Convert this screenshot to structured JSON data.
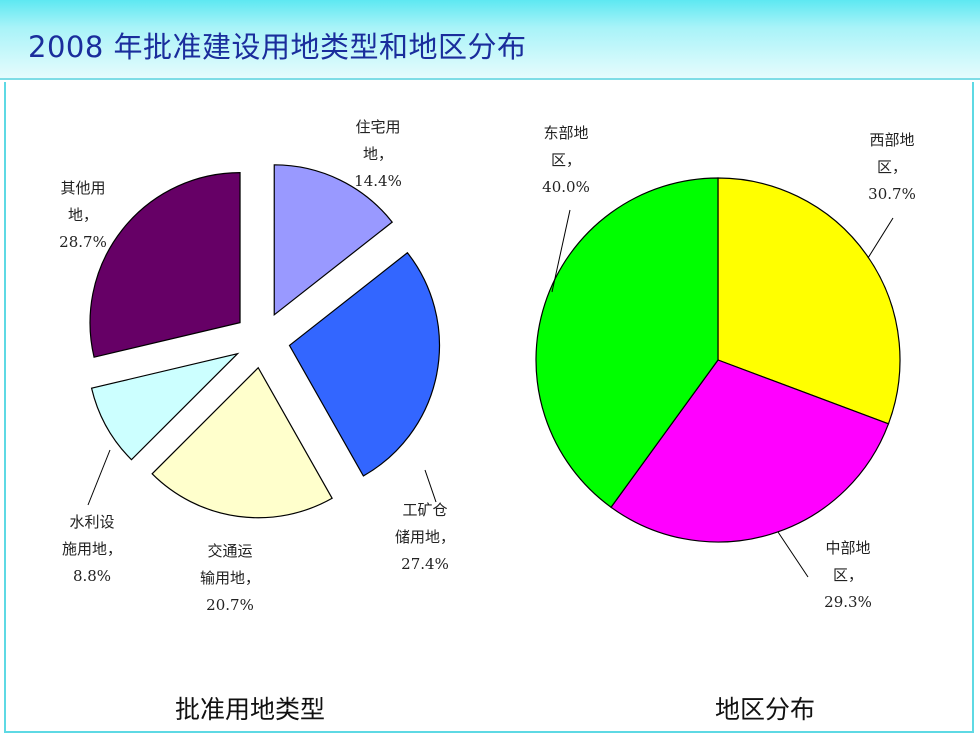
{
  "title": "2008 年批准建设用地类型和地区分布",
  "colors": {
    "title_text": "#1a2d9c",
    "title_bar": "#5ee8f2",
    "frame_border": "#5ed9e4"
  },
  "chart_data": [
    {
      "type": "pie",
      "title": "批准用地类型",
      "exploded": true,
      "slices": [
        {
          "name": "住宅用地",
          "value": 14.4,
          "color": "#9999ff",
          "label_lines": [
            "住宅用",
            "地，",
            "14.4%"
          ]
        },
        {
          "name": "工矿仓储用地",
          "value": 27.4,
          "color": "#3366ff",
          "label_lines": [
            "工矿仓",
            "储用地，",
            "27.4%"
          ]
        },
        {
          "name": "交通运输用地",
          "value": 20.7,
          "color": "#ffffcc",
          "label_lines": [
            "交通运",
            "输用地，",
            "20.7%"
          ]
        },
        {
          "name": "水利设施用地",
          "value": 8.8,
          "color": "#ccffff",
          "label_lines": [
            "水利设",
            "施用地，",
            "8.8%"
          ]
        },
        {
          "name": "其他用地",
          "value": 28.7,
          "color": "#660066",
          "label_lines": [
            "其他用",
            "地，",
            "28.7%"
          ]
        }
      ]
    },
    {
      "type": "pie",
      "title": "地区分布",
      "exploded": false,
      "slices": [
        {
          "name": "西部地区",
          "value": 30.7,
          "color": "#ffff00",
          "label_lines": [
            "西部地",
            "区，",
            "30.7%"
          ]
        },
        {
          "name": "中部地区",
          "value": 29.3,
          "color": "#ff00ff",
          "label_lines": [
            "中部地",
            "区，",
            "29.3%"
          ]
        },
        {
          "name": "东部地区",
          "value": 40.0,
          "color": "#00ff00",
          "label_lines": [
            "东部地",
            "区，",
            "40.0%"
          ]
        }
      ]
    }
  ]
}
